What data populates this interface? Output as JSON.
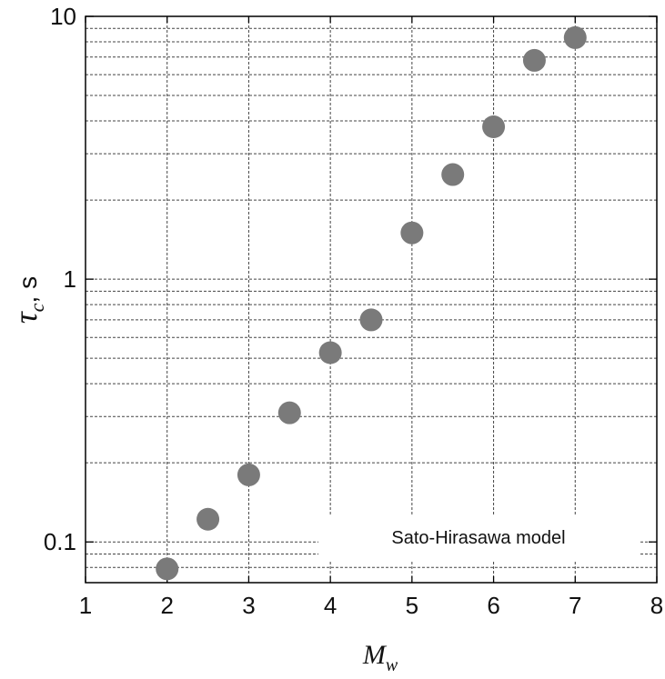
{
  "chart_data": {
    "type": "scatter",
    "title": "",
    "xlabel": {
      "main": "M",
      "sub": "w"
    },
    "ylabel": {
      "main": "τ",
      "sub": "c",
      "suffix": ", s"
    },
    "x_scale": "linear",
    "y_scale": "log",
    "xlim": [
      1,
      8
    ],
    "ylim": [
      0.07,
      10
    ],
    "x_ticks": [
      1,
      2,
      3,
      4,
      5,
      6,
      7,
      8
    ],
    "x_tick_labels": [
      "1",
      "2",
      "3",
      "4",
      "5",
      "6",
      "7",
      "8"
    ],
    "y_major_ticks": [
      0.1,
      1,
      10
    ],
    "y_tick_labels": [
      "0.1",
      "1",
      "10"
    ],
    "grid": true,
    "grid_style": "dotted",
    "marker_color": "#7a7a7a",
    "series": [
      {
        "x": [
          2,
          2.5,
          3,
          3.5,
          4,
          4.5,
          5,
          5.5,
          6,
          6.5,
          7
        ],
        "y": [
          0.079,
          0.122,
          0.18,
          0.31,
          0.525,
          0.7,
          1.5,
          2.5,
          3.8,
          6.8,
          8.3
        ]
      }
    ],
    "annotation": "Sato-Hirasawa model"
  }
}
